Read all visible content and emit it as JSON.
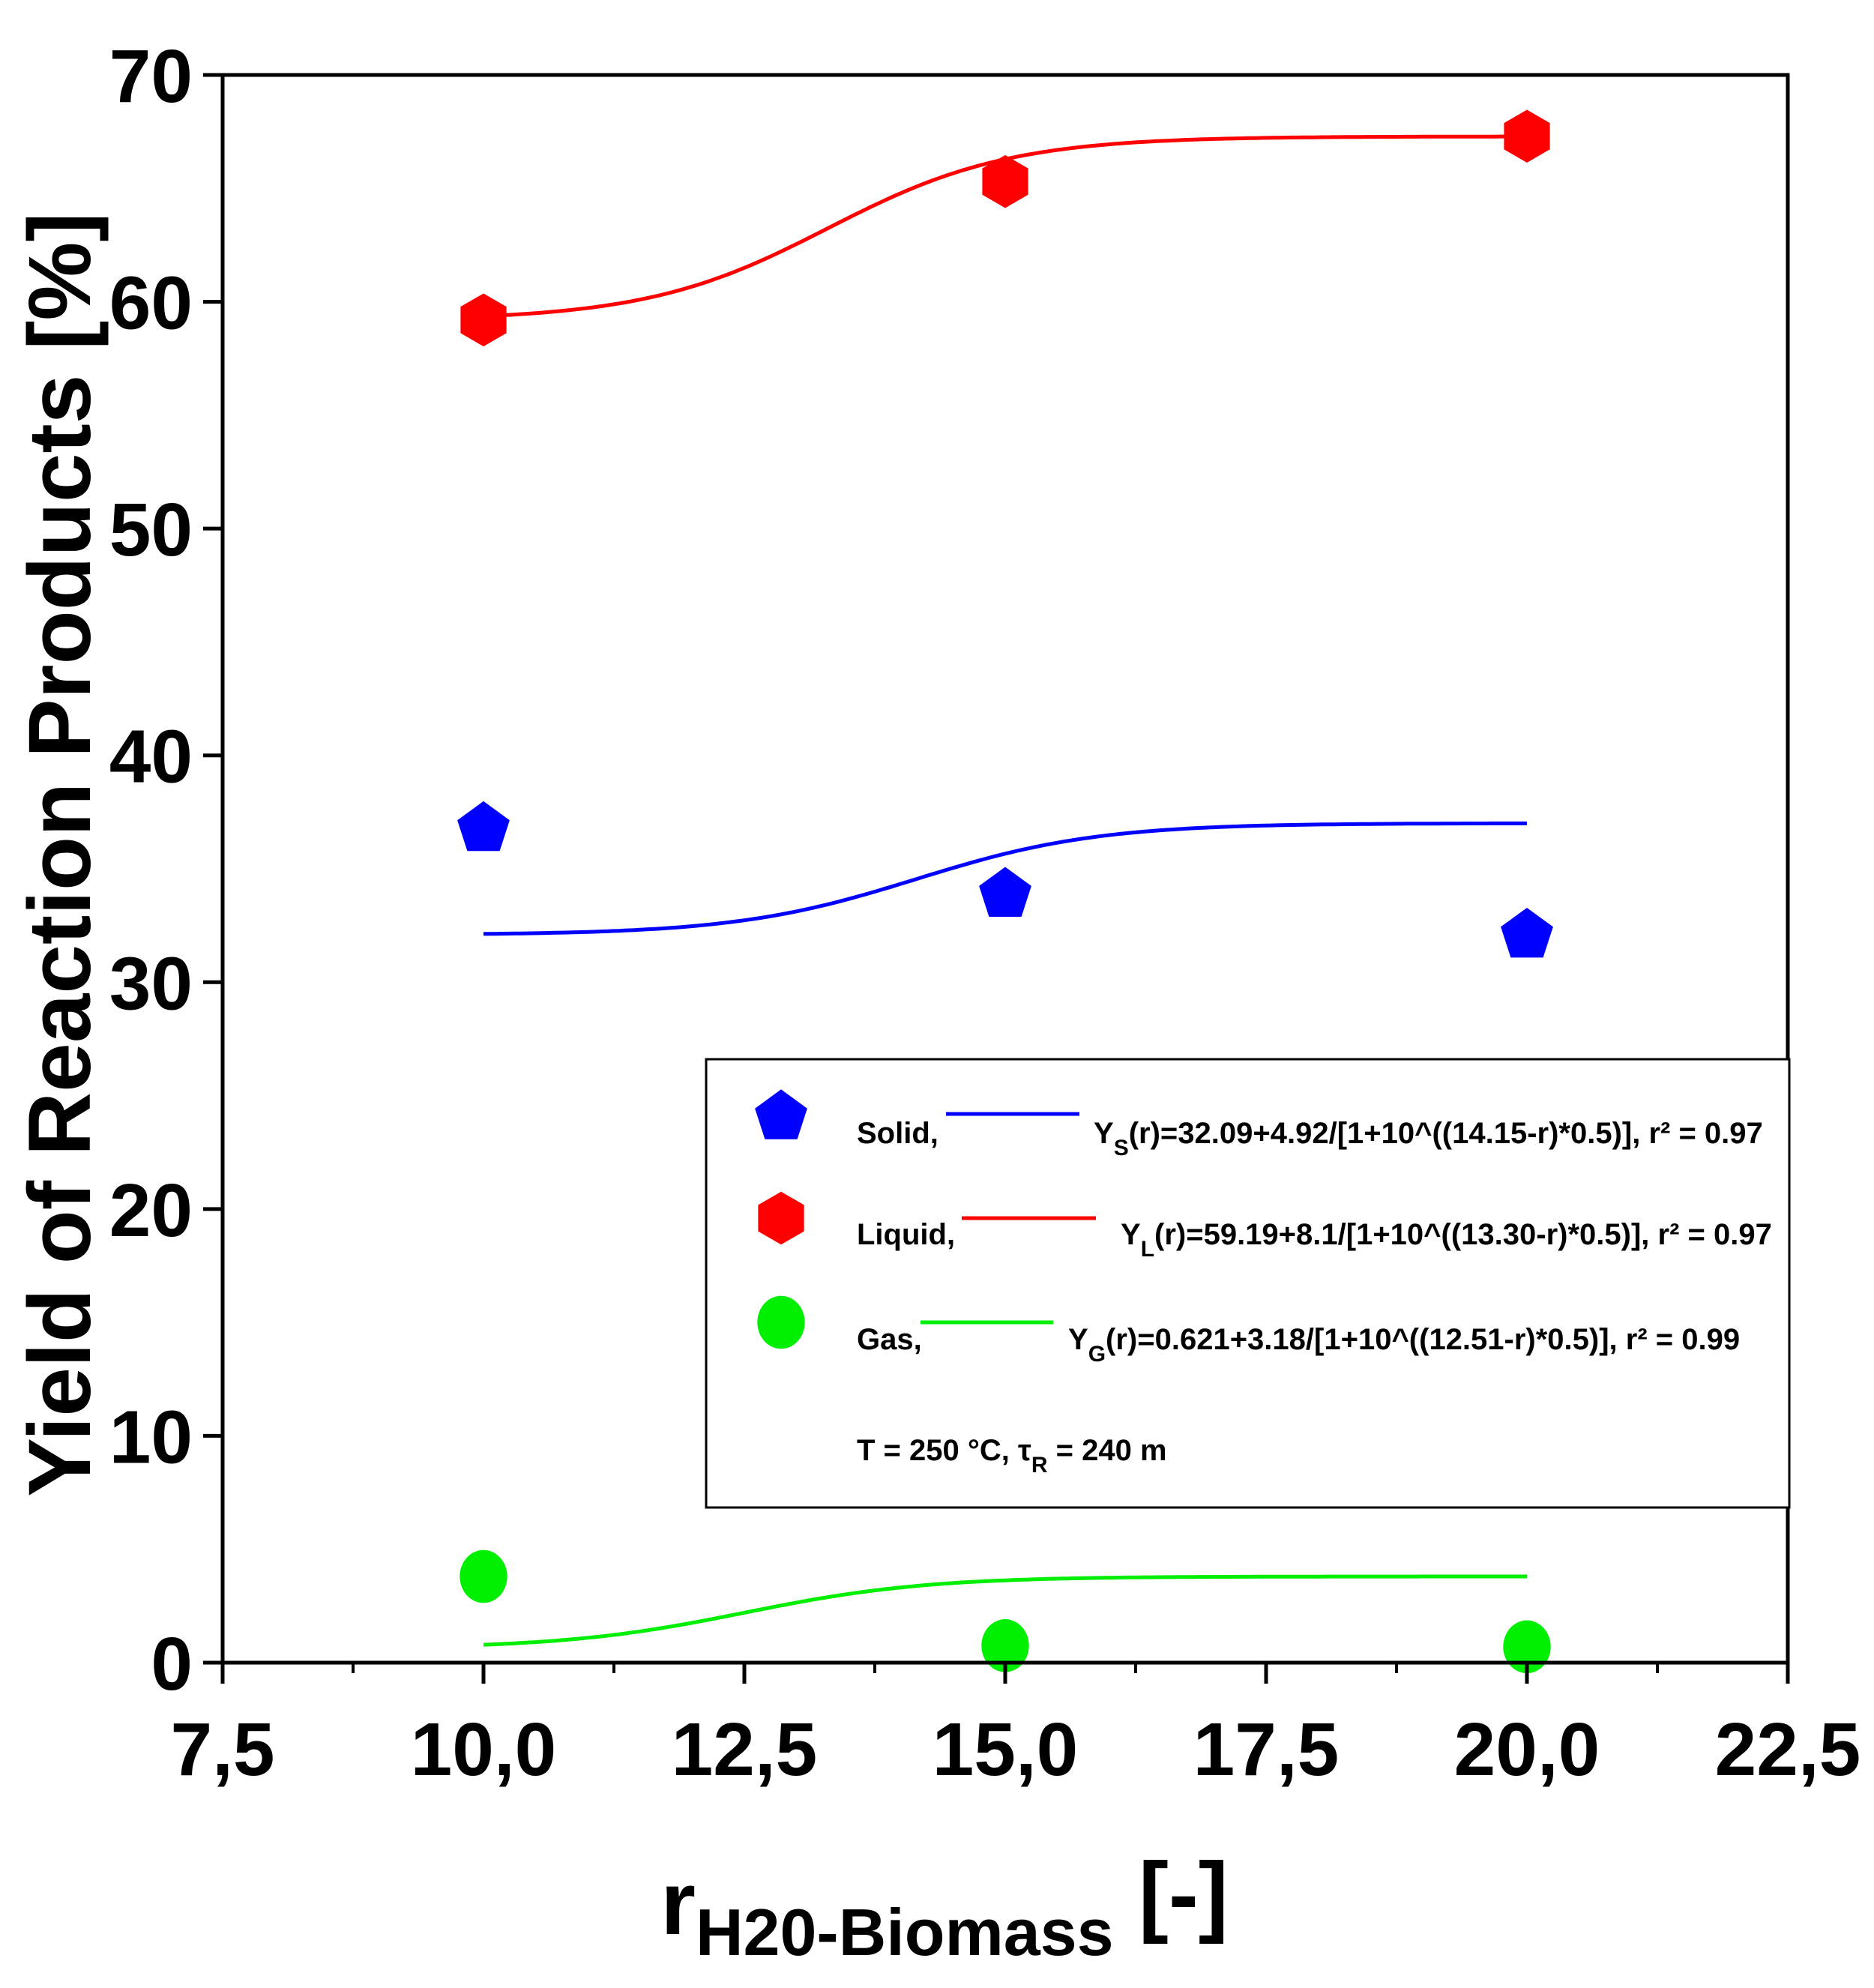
{
  "chart_data": {
    "type": "scatter",
    "title": "",
    "ylabel": "Yield of Reaction Products [%]",
    "xlabel": {
      "main": "r",
      "subscript": "H20-Biomass",
      "unit": " [-]"
    },
    "xlim": [
      7.5,
      22.5
    ],
    "ylim": [
      0,
      70
    ],
    "xticks": [
      7.5,
      10.0,
      12.5,
      15.0,
      17.5,
      20.0,
      22.5
    ],
    "xtick_labels": [
      "7,5",
      "10,0",
      "12,5",
      "15,0",
      "17,5",
      "20,0",
      "22,5"
    ],
    "xminor_step": 1.25,
    "yticks": [
      0,
      10,
      20,
      30,
      40,
      50,
      60,
      70
    ],
    "ytick_labels": [
      "0",
      "10",
      "20",
      "30",
      "40",
      "50",
      "60",
      "70"
    ],
    "grid": false,
    "legend_position": "lower-right",
    "series": [
      {
        "name": "Solid",
        "label": "Solid,",
        "marker": "pentagon",
        "color": "#0000ff",
        "x": [
          10,
          15,
          20
        ],
        "y": [
          36.9,
          34.0,
          32.2
        ],
        "fit": {
          "a": 32.09,
          "b": 4.92,
          "c": 14.15,
          "k": 0.5
        },
        "fit_label_main": "Y",
        "fit_label_sub": "S",
        "fit_label_rest": "(r)=32.09+4.92/[1+10^((14.15-r)*0.5)], r² = 0.97"
      },
      {
        "name": "Liquid",
        "label": "Liquid,",
        "marker": "hexagon",
        "color": "#ff0000",
        "x": [
          10,
          15,
          20
        ],
        "y": [
          59.2,
          65.3,
          67.3
        ],
        "fit": {
          "a": 59.19,
          "b": 8.1,
          "c": 13.3,
          "k": 0.5
        },
        "fit_label_main": "Y",
        "fit_label_sub": "L",
        "fit_label_rest": "(r)=59.19+8.1/[1+10^((13.30-r)*0.5)], r² = 0.97"
      },
      {
        "name": "Gas",
        "label": "Gas,",
        "marker": "circle",
        "color": "#00ee00",
        "x": [
          10,
          15,
          20
        ],
        "y": [
          3.8,
          0.75,
          0.7
        ],
        "fit": {
          "a": 0.621,
          "b": 3.18,
          "c": 12.51,
          "k": 0.5
        },
        "fit_label_main": "Y",
        "fit_label_sub": "G",
        "fit_label_rest": "(r)=0.621+3.18/[1+10^((12.51-r)*0.5)], r² = 0.99"
      }
    ],
    "annotation": {
      "prefix": "T = 250 °C, ",
      "tau": "τ",
      "tau_sub": "R",
      "suffix": " = 240 m"
    }
  }
}
